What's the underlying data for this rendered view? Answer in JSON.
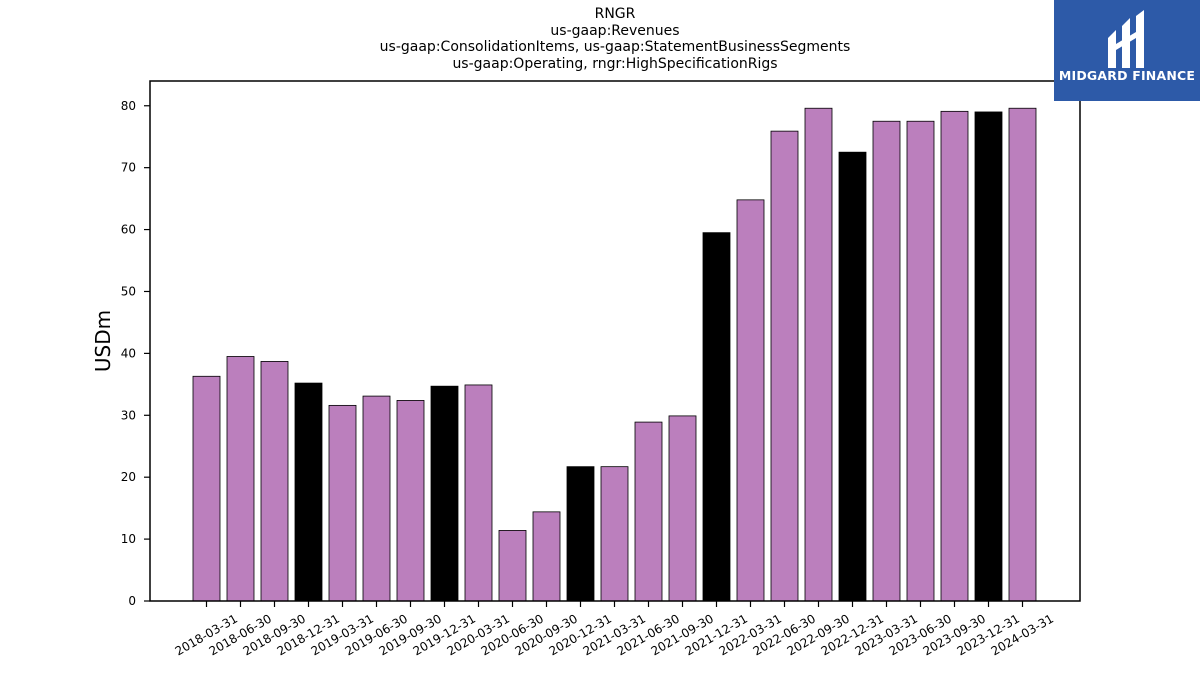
{
  "chart_data": {
    "type": "bar",
    "title_lines": [
      "RNGR",
      "us-gaap:Revenues",
      "us-gaap:ConsolidationItems, us-gaap:StatementBusinessSegments",
      "us-gaap:Operating, rngr:HighSpecificationRigs"
    ],
    "xlabel": "",
    "ylabel": "USDm",
    "ylim": [
      0,
      84
    ],
    "yticks": [
      0,
      10,
      20,
      30,
      40,
      50,
      60,
      70,
      80
    ],
    "categories": [
      "2018-03-31",
      "2018-06-30",
      "2018-09-30",
      "2018-12-31",
      "2019-03-31",
      "2019-06-30",
      "2019-09-30",
      "2019-12-31",
      "2020-03-31",
      "2020-06-30",
      "2020-09-30",
      "2020-12-31",
      "2021-03-31",
      "2021-06-30",
      "2021-09-30",
      "2021-12-31",
      "2022-03-31",
      "2022-06-30",
      "2022-09-30",
      "2022-12-31",
      "2023-03-31",
      "2023-06-30",
      "2023-09-30",
      "2023-12-31",
      "2024-03-31"
    ],
    "values": [
      36.3,
      39.5,
      38.7,
      35.2,
      31.6,
      33.1,
      32.4,
      34.7,
      34.9,
      11.4,
      14.4,
      21.7,
      21.7,
      28.9,
      29.9,
      59.5,
      64.8,
      75.9,
      79.6,
      72.5,
      77.5,
      77.5,
      79.1,
      79.0,
      79.6
    ],
    "quarter_end_of_year_highlight": true,
    "colors": {
      "bar": "#bb7fbd",
      "highlight": "#000000",
      "edge": "#000000"
    },
    "grid": false
  },
  "logo": {
    "text": "MIDGARD FINANCE",
    "color": "#2d5aa8"
  }
}
